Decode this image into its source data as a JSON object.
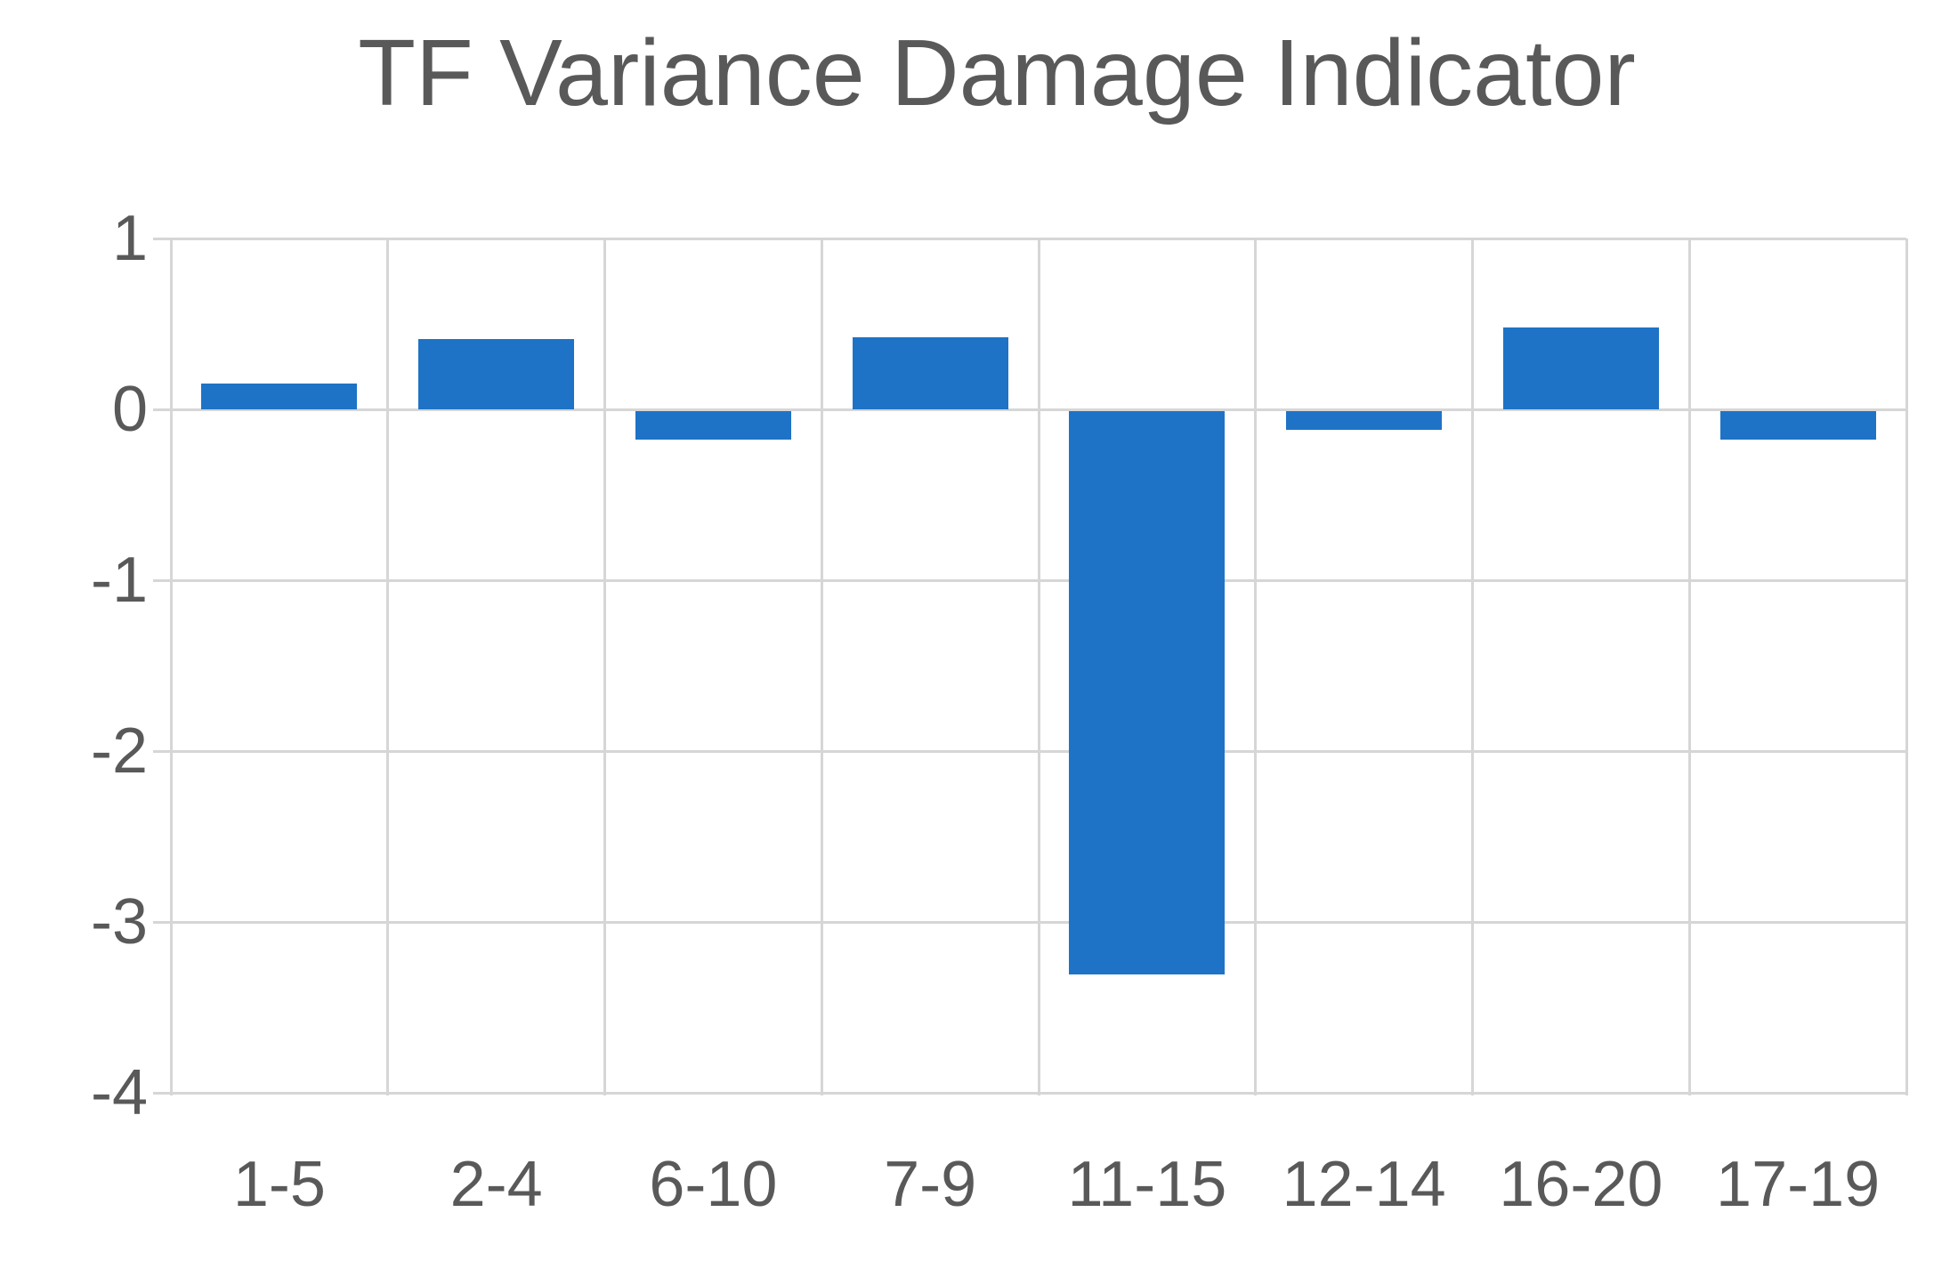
{
  "chart_data": {
    "type": "bar",
    "title": "TF Variance Damage Indicator",
    "categories": [
      "1-5",
      "2-4",
      "6-10",
      "7-9",
      "11-15",
      "12-14",
      "16-20",
      "17-19"
    ],
    "values": [
      0.15,
      0.41,
      -0.17,
      0.42,
      -3.3,
      -0.11,
      0.48,
      -0.17
    ],
    "xlabel": "",
    "ylabel": "",
    "ylim": [
      -4,
      1
    ],
    "yticks": [
      1,
      0,
      -1,
      -2,
      -3,
      -4
    ],
    "grid": "both",
    "legend_position": "none",
    "colors": {
      "bar": "#1E73C6",
      "gridline": "#D6D6D6",
      "text": "#595959",
      "background": "#FFFFFF"
    }
  }
}
